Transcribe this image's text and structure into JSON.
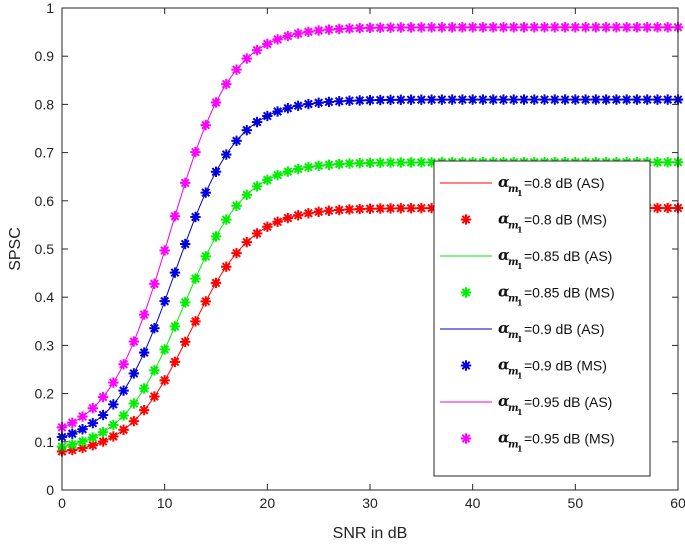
{
  "chart_data": {
    "type": "line",
    "title": "",
    "xlabel": "SNR in dB",
    "ylabel": "SPSC",
    "xlim": [
      0,
      60
    ],
    "ylim": [
      0,
      1
    ],
    "xticks": [
      0,
      10,
      20,
      30,
      40,
      50,
      60
    ],
    "yticks": [
      0,
      0.1,
      0.2,
      0.3,
      0.4,
      0.5,
      0.6,
      0.7,
      0.8,
      0.9,
      1
    ],
    "grid": false,
    "legend_position": "bottom-right",
    "x": [
      0,
      1,
      2,
      3,
      4,
      5,
      6,
      7,
      8,
      9,
      10,
      11,
      12,
      13,
      14,
      15,
      16,
      17,
      18,
      19,
      20,
      21,
      22,
      23,
      24,
      25,
      26,
      27,
      28,
      29,
      30,
      31,
      32,
      33,
      34,
      35,
      36,
      37,
      38,
      39,
      40,
      41,
      42,
      43,
      44,
      45,
      46,
      47,
      48,
      49,
      50,
      51,
      52,
      53,
      54,
      55,
      56,
      57,
      58,
      59,
      60
    ],
    "series": [
      {
        "name": "α_m1=0.8 dB (AS)",
        "style": "line",
        "color": "#ff0000",
        "start": 0.08,
        "end": 0.585,
        "mid": 12.5,
        "scale": 3.0
      },
      {
        "name": "α_m1=0.8 dB (MS)",
        "style": "marker",
        "color": "#ff0000",
        "start": 0.08,
        "end": 0.585,
        "mid": 12.5,
        "scale": 3.0
      },
      {
        "name": "α_m1=0.85 dB (AS)",
        "style": "line",
        "color": "#00ee00",
        "start": 0.09,
        "end": 0.68,
        "mid": 11.8,
        "scale": 3.0
      },
      {
        "name": "α_m1=0.85 dB (MS)",
        "style": "marker",
        "color": "#00ee00",
        "start": 0.09,
        "end": 0.68,
        "mid": 11.8,
        "scale": 3.0
      },
      {
        "name": "α_m1=0.9 dB (AS)",
        "style": "line",
        "color": "#0000cc",
        "start": 0.11,
        "end": 0.81,
        "mid": 11.0,
        "scale": 3.0
      },
      {
        "name": "α_m1=0.9 dB (MS)",
        "style": "marker",
        "color": "#0000dd",
        "start": 0.11,
        "end": 0.81,
        "mid": 11.0,
        "scale": 3.0
      },
      {
        "name": "α_m1=0.95 dB (AS)",
        "style": "line",
        "color": "#ee00ee",
        "start": 0.13,
        "end": 0.96,
        "mid": 10.5,
        "scale": 3.0
      },
      {
        "name": "α_m1=0.95 dB (MS)",
        "style": "marker",
        "color": "#ff00ff",
        "start": 0.13,
        "end": 0.96,
        "mid": 10.5,
        "scale": 3.0
      }
    ],
    "legend_entries": [
      {
        "value": "=0.8 dB (AS)",
        "style": "line",
        "color": "#ff0000"
      },
      {
        "value": "=0.8 dB (MS)",
        "style": "marker",
        "color": "#ff0000"
      },
      {
        "value": "=0.85 dB (AS)",
        "style": "line",
        "color": "#00ee00"
      },
      {
        "value": "=0.85 dB (MS)",
        "style": "marker",
        "color": "#00ee00"
      },
      {
        "value": "=0.9 dB (AS)",
        "style": "line",
        "color": "#0000cc"
      },
      {
        "value": "=0.9 dB (MS)",
        "style": "marker",
        "color": "#0000dd"
      },
      {
        "value": "=0.95 dB (AS)",
        "style": "line",
        "color": "#ee00ee"
      },
      {
        "value": "=0.95 dB (MS)",
        "style": "marker",
        "color": "#ff00ff"
      }
    ],
    "legend_symbol": "α",
    "legend_sub": "m",
    "legend_subsub": "1"
  }
}
